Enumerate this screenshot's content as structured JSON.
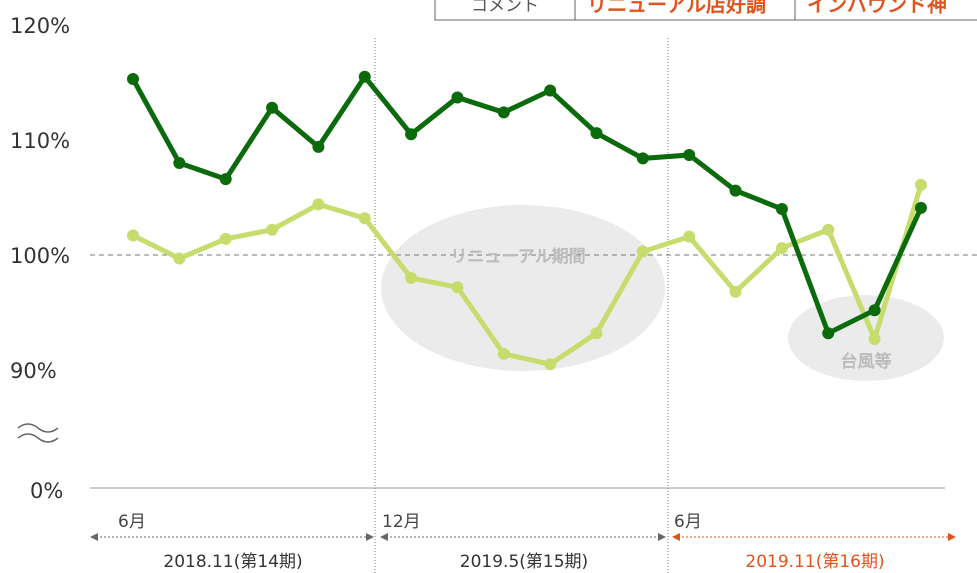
{
  "chart_data": {
    "type": "line",
    "header_row": [
      "コメント",
      "リニューアル店好調",
      "インバウンド神"
    ],
    "categories": [
      null,
      null,
      null,
      null,
      null,
      null,
      null,
      null,
      null,
      null,
      null,
      null,
      null,
      null,
      null,
      null,
      null,
      null
    ],
    "series": [
      {
        "color": "#0b6a0b",
        "values": [
          115.3,
          108.0,
          106.6,
          112.8,
          109.4,
          115.5,
          110.5,
          113.7,
          112.4,
          114.3,
          110.6,
          108.4,
          108.7,
          105.6,
          104.0,
          93.2,
          95.2,
          104.1
        ]
      },
      {
        "color": "#c6dd6e",
        "values": [
          101.7,
          99.7,
          101.4,
          102.2,
          104.4,
          103.2,
          98.0,
          97.2,
          91.4,
          90.5,
          93.2,
          100.3,
          101.6,
          96.8,
          100.6,
          102.2,
          92.7,
          106.1
        ]
      }
    ],
    "ylim": [
      90,
      120
    ],
    "yticks": [
      {
        "value": 90,
        "label": "90%"
      },
      {
        "value": 100,
        "label": "100%"
      },
      {
        "value": 110,
        "label": "110%"
      },
      {
        "value": 120,
        "label": "120%"
      }
    ],
    "axis_break_label": {
      "value": 0,
      "label": "0%"
    },
    "reference_line": 100,
    "annotations": [
      "リニューアル期間",
      "台風等"
    ],
    "periods": [
      {
        "name": "2018.11(第14期)",
        "start": "6月",
        "color": "#666"
      },
      {
        "name": "2019.5(第15期)",
        "start": "12月",
        "color": "#666"
      },
      {
        "name": "2019.11(第16期)",
        "start": "6月",
        "color": "#e0531c"
      }
    ]
  }
}
